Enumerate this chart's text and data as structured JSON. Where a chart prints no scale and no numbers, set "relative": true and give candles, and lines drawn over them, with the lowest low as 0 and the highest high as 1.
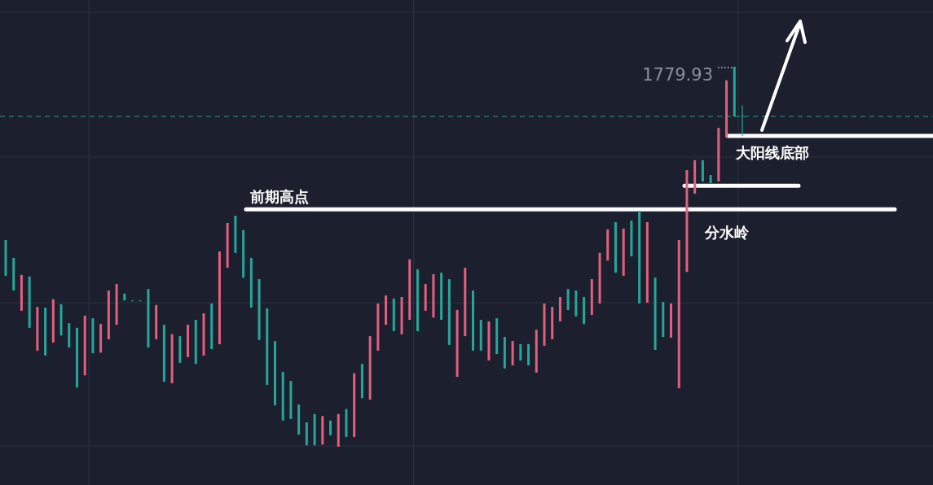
{
  "chart_data": {
    "type": "candlestick",
    "relative": true,
    "categories": [
      null,
      null,
      null,
      null,
      null,
      null,
      null,
      null,
      null,
      null,
      null,
      null,
      null,
      null,
      null,
      null,
      null,
      null,
      null,
      null,
      null,
      null,
      null,
      null,
      null,
      null,
      null,
      null,
      null,
      null,
      null,
      null,
      null,
      null,
      null,
      null,
      null,
      null,
      null,
      null,
      null,
      null,
      null,
      null,
      null,
      null,
      null,
      null,
      null,
      null,
      null,
      null,
      null,
      null,
      null,
      null,
      null,
      null,
      null,
      null,
      null,
      null,
      null,
      null,
      null,
      null,
      null,
      null,
      null,
      null,
      null,
      null,
      null,
      null,
      null,
      null,
      null,
      null,
      null,
      null,
      null,
      null,
      null,
      null,
      null,
      null,
      null,
      null,
      null,
      null,
      null,
      null,
      null,
      null
    ],
    "ohlc": [
      [
        0.544,
        0.544,
        0.45,
        0.45
      ],
      [
        0.497,
        0.497,
        0.411,
        0.411
      ],
      [
        0.358,
        0.452,
        0.358,
        0.452
      ],
      [
        0.448,
        0.448,
        0.313,
        0.313
      ],
      [
        0.253,
        0.368,
        0.253,
        0.368
      ],
      [
        0.366,
        0.366,
        0.24,
        0.24
      ],
      [
        0.274,
        0.388,
        0.274,
        0.388
      ],
      [
        0.375,
        0.375,
        0.293,
        0.293
      ],
      [
        0.325,
        0.325,
        0.261,
        0.261
      ],
      [
        0.313,
        0.313,
        0.156,
        0.156
      ],
      [
        0.188,
        0.345,
        0.188,
        0.345
      ],
      [
        0.338,
        0.338,
        0.246,
        0.246
      ],
      [
        0.248,
        0.323,
        0.248,
        0.323
      ],
      [
        0.283,
        0.411,
        0.283,
        0.411
      ],
      [
        0.321,
        0.428,
        0.321,
        0.428
      ],
      [
        0.403,
        0.403,
        0.385,
        0.385
      ],
      [
        0.385,
        0.385,
        0.383,
        0.383
      ],
      [
        0.385,
        0.385,
        0.383,
        0.383
      ],
      [
        0.415,
        0.415,
        0.261,
        0.261
      ],
      [
        0.283,
        0.373,
        0.283,
        0.373
      ],
      [
        0.321,
        0.321,
        0.171,
        0.171
      ],
      [
        0.167,
        0.296,
        0.167,
        0.296
      ],
      [
        0.291,
        0.291,
        0.221,
        0.221
      ],
      [
        0.236,
        0.321,
        0.236,
        0.321
      ],
      [
        0.334,
        0.334,
        0.218,
        0.218
      ],
      [
        0.24,
        0.351,
        0.24,
        0.351
      ],
      [
        0.377,
        0.377,
        0.257,
        0.257
      ],
      [
        0.27,
        0.514,
        0.27,
        0.514
      ],
      [
        0.471,
        0.589,
        0.471,
        0.589
      ],
      [
        0.608,
        0.608,
        0.51,
        0.51
      ],
      [
        0.57,
        0.57,
        0.445,
        0.445
      ],
      [
        0.497,
        0.497,
        0.366,
        0.366
      ],
      [
        0.441,
        0.441,
        0.281,
        0.281
      ],
      [
        0.364,
        0.364,
        0.163,
        0.163
      ],
      [
        0.278,
        0.278,
        0.109,
        0.109
      ],
      [
        0.197,
        0.197,
        0.069,
        0.069
      ],
      [
        0.173,
        0.173,
        0.073,
        0.073
      ],
      [
        0.111,
        0.111,
        0.032,
        0.032
      ],
      [
        0.064,
        0.064,
        0.004,
        0.004
      ],
      [
        0.086,
        0.086,
        0.004,
        0.004
      ],
      [
        0.006,
        0.081,
        0.006,
        0.081
      ],
      [
        0.069,
        0.069,
        0.03,
        0.03
      ],
      [
        0,
        0.086,
        0,
        0.086
      ],
      [
        0.099,
        0.099,
        0.026,
        0.026
      ],
      [
        0.026,
        0.193,
        0.026,
        0.193
      ],
      [
        0.218,
        0.218,
        0.128,
        0.128
      ],
      [
        0.124,
        0.291,
        0.124,
        0.291
      ],
      [
        0.253,
        0.377,
        0.253,
        0.377
      ],
      [
        0.321,
        0.398,
        0.321,
        0.398
      ],
      [
        0.39,
        0.39,
        0.304,
        0.304
      ],
      [
        0.296,
        0.394,
        0.296,
        0.394
      ],
      [
        0.334,
        0.493,
        0.334,
        0.493
      ],
      [
        0.467,
        0.467,
        0.304,
        0.304
      ],
      [
        0.358,
        0.428,
        0.358,
        0.428
      ],
      [
        0.34,
        0.454,
        0.34,
        0.454
      ],
      [
        0.458,
        0.458,
        0.334,
        0.334
      ],
      [
        0.441,
        0.441,
        0.268,
        0.268
      ],
      [
        0.184,
        0.36,
        0.184,
        0.36
      ],
      [
        0.291,
        0.471,
        0.291,
        0.471
      ],
      [
        0.411,
        0.411,
        0.253,
        0.253
      ],
      [
        0.334,
        0.334,
        0.253,
        0.253
      ],
      [
        0.227,
        0.33,
        0.227,
        0.33
      ],
      [
        0.338,
        0.338,
        0.244,
        0.244
      ],
      [
        0.289,
        0.289,
        0.206,
        0.206
      ],
      [
        0.214,
        0.278,
        0.214,
        0.278
      ],
      [
        0.27,
        0.27,
        0.227,
        0.227
      ],
      [
        0.27,
        0.27,
        0.214,
        0.214
      ],
      [
        0.195,
        0.308,
        0.195,
        0.308
      ],
      [
        0.266,
        0.377,
        0.266,
        0.377
      ],
      [
        0.283,
        0.368,
        0.283,
        0.368
      ],
      [
        0.33,
        0.394,
        0.33,
        0.394
      ],
      [
        0.415,
        0.415,
        0.36,
        0.36
      ],
      [
        0.411,
        0.411,
        0.343,
        0.343
      ],
      [
        0.394,
        0.394,
        0.323,
        0.323
      ],
      [
        0.347,
        0.441,
        0.347,
        0.441
      ],
      [
        0.377,
        0.51,
        0.377,
        0.51
      ],
      [
        0.49,
        0.572,
        0.49,
        0.572
      ],
      [
        0.591,
        0.591,
        0.458,
        0.458
      ],
      [
        0.45,
        0.574,
        0.45,
        0.574
      ],
      [
        0.595,
        0.595,
        0.501,
        0.501
      ],
      [
        0.621,
        0.621,
        0.377,
        0.377
      ],
      [
        0.379,
        0.591,
        0.379,
        0.591
      ],
      [
        0.445,
        0.445,
        0.255,
        0.255
      ],
      [
        0.381,
        0.381,
        0.289,
        0.289
      ],
      [
        0.287,
        0.377,
        0.287,
        0.377
      ],
      [
        0.154,
        0.544,
        0.154,
        0.544
      ],
      [
        0.46,
        0.728,
        0.46,
        0.728
      ],
      [
        0.666,
        0.754,
        0.666,
        0.754
      ],
      [
        0.754,
        0.754,
        0.698,
        0.698
      ],
      [
        0.715,
        0.715,
        0.694,
        0.694
      ],
      [
        0.698,
        0.839,
        0.698,
        0.839
      ],
      [
        0.814,
        0.964,
        0.814,
        0.964
      ],
      [
        1,
        1,
        0.869,
        0.869
      ],
      [
        0.872,
        0.899,
        0.818,
        0.869
      ]
    ],
    "colors": [
      "#26a69a",
      "#26a69a",
      "#e0607e",
      "#26a69a",
      "#e0607e",
      "#26a69a",
      "#e0607e",
      "#26a69a",
      "#26a69a",
      "#26a69a",
      "#e0607e",
      "#26a69a",
      "#e0607e",
      "#e0607e",
      "#e0607e",
      "#26a69a",
      "#26a69a",
      "#26a69a",
      "#26a69a",
      "#e0607e",
      "#26a69a",
      "#e0607e",
      "#26a69a",
      "#e0607e",
      "#26a69a",
      "#e0607e",
      "#26a69a",
      "#e0607e",
      "#e0607e",
      "#26a69a",
      "#26a69a",
      "#26a69a",
      "#26a69a",
      "#26a69a",
      "#26a69a",
      "#26a69a",
      "#26a69a",
      "#26a69a",
      "#26a69a",
      "#26a69a",
      "#e0607e",
      "#26a69a",
      "#e0607e",
      "#26a69a",
      "#e0607e",
      "#26a69a",
      "#e0607e",
      "#e0607e",
      "#e0607e",
      "#26a69a",
      "#e0607e",
      "#e0607e",
      "#26a69a",
      "#e0607e",
      "#e0607e",
      "#26a69a",
      "#26a69a",
      "#e0607e",
      "#e0607e",
      "#26a69a",
      "#26a69a",
      "#e0607e",
      "#26a69a",
      "#26a69a",
      "#e0607e",
      "#26a69a",
      "#26a69a",
      "#e0607e",
      "#e0607e",
      "#e0607e",
      "#e0607e",
      "#26a69a",
      "#26a69a",
      "#26a69a",
      "#e0607e",
      "#e0607e",
      "#e0607e",
      "#26a69a",
      "#e0607e",
      "#26a69a",
      "#26a69a",
      "#e0607e",
      "#26a69a",
      "#26a69a",
      "#e0607e",
      "#e0607e",
      "#e0607e",
      "#e0607e",
      "#26a69a",
      "#26a69a",
      "#e0607e",
      "#e0607e",
      "#26a69a",
      "#26a69a"
    ],
    "grid": true,
    "ref_lines": [
      {
        "axis": "y",
        "value": 0.625,
        "label": "前期高点",
        "color": "#ffffff"
      },
      {
        "axis": "y",
        "value": 0.687,
        "color": "#ffffff"
      },
      {
        "axis": "y",
        "value": 0.818,
        "label": "大阳线底部",
        "color": "#ffffff"
      },
      {
        "axis": "y",
        "value": 0.869,
        "color": "#2f7f78",
        "line_style": "dashed"
      }
    ],
    "annotations": [
      "分水岭",
      "1779.93"
    ]
  }
}
